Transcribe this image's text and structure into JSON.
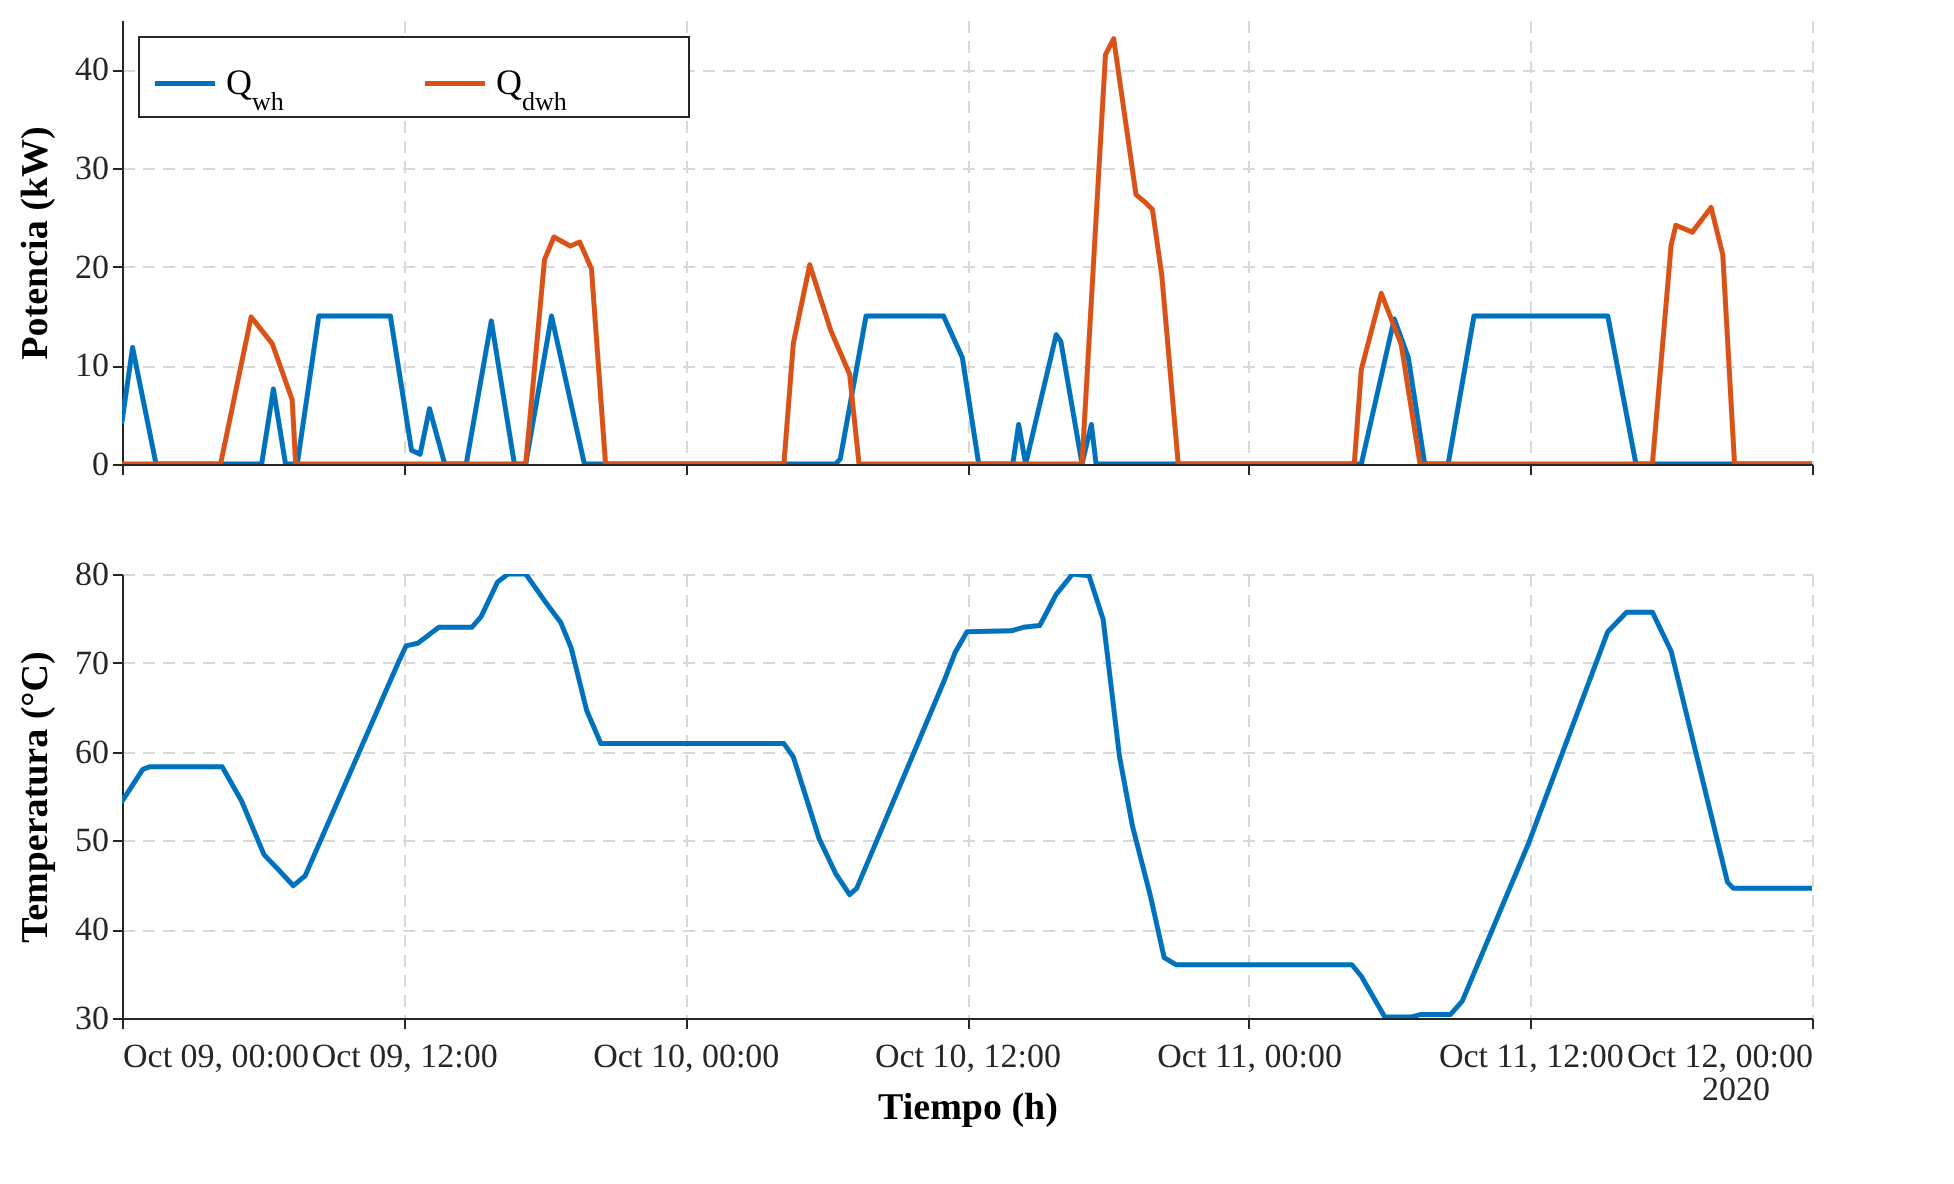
{
  "chart_data": [
    {
      "type": "line",
      "ylabel": "Potencia (kW)",
      "xlim": [
        "2020-10-09T00:00",
        "2020-10-12T00:00"
      ],
      "xticks": [
        {
          "value": "2020-10-09T00:00",
          "label": null
        },
        {
          "value": "2020-10-09T12:00",
          "label": null
        },
        {
          "value": "2020-10-10T00:00",
          "label": null
        },
        {
          "value": "2020-10-10T12:00",
          "label": null
        },
        {
          "value": "2020-10-11T00:00",
          "label": null
        },
        {
          "value": "2020-10-11T12:00",
          "label": null
        },
        {
          "value": "2020-10-12T00:00",
          "label": null
        }
      ],
      "ylim": [
        0,
        45
      ],
      "yticks": [
        0,
        10,
        20,
        30,
        40
      ],
      "grid": true,
      "legend": "top left",
      "tick_labels": "y",
      "series": [
        {
          "name": "Q$_{wh}$",
          "color": "#0072bd",
          "x": [
            "2020-10-09T00:00",
            "2020-10-09T00:27",
            "2020-10-09T01:27",
            "2020-10-09T05:57",
            "2020-10-09T06:27",
            "2020-10-09T06:58",
            "2020-10-09T07:28",
            "2020-10-09T08:23",
            "2020-10-09T11:26",
            "2020-10-09T12:20",
            "2020-10-09T12:42",
            "2020-10-09T13:06",
            "2020-10-09T13:45",
            "2020-10-09T14:40",
            "2020-10-09T15:44",
            "2020-10-09T16:43",
            "2020-10-09T17:12",
            "2020-10-09T18:18",
            "2020-10-09T19:42",
            "2020-10-10T04:18",
            "2020-10-10T06:24",
            "2020-10-10T06:36",
            "2020-10-10T07:42",
            "2020-10-10T11:00",
            "2020-10-10T11:48",
            "2020-10-10T12:30",
            "2020-10-10T13:57",
            "2020-10-10T14:12",
            "2020-10-10T14:30",
            "2020-10-10T15:48",
            "2020-10-10T16:00",
            "2020-10-10T16:54",
            "2020-10-10T17:18",
            "2020-10-10T17:30",
            "2020-10-11T04:48",
            "2020-10-11T06:12",
            "2020-10-11T06:48",
            "2020-10-11T07:30",
            "2020-10-11T08:30",
            "2020-10-11T09:36",
            "2020-10-11T15:18",
            "2020-10-11T16:30",
            "2020-10-12T00:00"
          ],
          "values": [
            4.3,
            11.8,
            0,
            0,
            7.6,
            0,
            0,
            15,
            15,
            1.4,
            1,
            5.6,
            0,
            0,
            14.5,
            0,
            0,
            15,
            0,
            0,
            0,
            0.5,
            15,
            15,
            10.8,
            0,
            0,
            4,
            0,
            13.1,
            12.4,
            0,
            4,
            0,
            0,
            14.7,
            10.8,
            0,
            0,
            15,
            15,
            0,
            0
          ]
        },
        {
          "name": "Q$_{dwh}$",
          "color": "#d95319",
          "x": [
            "2020-10-09T00:00",
            "2020-10-09T04:12",
            "2020-10-09T05:30",
            "2020-10-09T06:24",
            "2020-10-09T07:15",
            "2020-10-09T07:24",
            "2020-10-09T17:12",
            "2020-10-09T18:00",
            "2020-10-09T18:24",
            "2020-10-09T19:06",
            "2020-10-09T19:30",
            "2020-10-09T20:00",
            "2020-10-09T20:36",
            "2020-10-10T04:12",
            "2020-10-10T04:36",
            "2020-10-10T05:18",
            "2020-10-10T06:12",
            "2020-10-10T07:00",
            "2020-10-10T07:24",
            "2020-10-10T16:54",
            "2020-10-10T17:54",
            "2020-10-10T18:15",
            "2020-10-10T19:12",
            "2020-10-10T19:36",
            "2020-10-10T19:54",
            "2020-10-10T20:18",
            "2020-10-10T21:00",
            "2020-10-11T04:30",
            "2020-10-11T04:48",
            "2020-10-11T05:39",
            "2020-10-11T06:30",
            "2020-10-11T07:18",
            "2020-10-11T17:12",
            "2020-10-11T18:00",
            "2020-10-11T18:12",
            "2020-10-11T18:54",
            "2020-10-11T19:42",
            "2020-10-11T20:12",
            "2020-10-11T20:42",
            "2020-10-12T00:00"
          ],
          "values": [
            0,
            0,
            14.9,
            12.2,
            6.5,
            0,
            0,
            20.7,
            23,
            22.1,
            22.5,
            19.8,
            0,
            0,
            12.2,
            20.2,
            13.5,
            9.1,
            0,
            0,
            41.5,
            43.1,
            27.3,
            26.5,
            25.8,
            19.1,
            0,
            0,
            9.6,
            17.3,
            12.1,
            0,
            0,
            22.2,
            24.2,
            23.5,
            26,
            21.2,
            0,
            0
          ]
        }
      ]
    },
    {
      "type": "line",
      "xlabel": "Tiempo (h)",
      "ylabel": "Temperatura (°C)",
      "xlim": [
        "2020-10-09T00:00",
        "2020-10-12T00:00"
      ],
      "xticks": [
        {
          "value": "2020-10-09T00:00",
          "label": "Oct 09, 00:00"
        },
        {
          "value": "2020-10-09T12:00",
          "label": "Oct 09, 12:00"
        },
        {
          "value": "2020-10-10T00:00",
          "label": "Oct 10, 00:00"
        },
        {
          "value": "2020-10-10T12:00",
          "label": "Oct 10, 12:00"
        },
        {
          "value": "2020-10-11T00:00",
          "label": "Oct 11, 00:00"
        },
        {
          "value": "2020-10-11T12:00",
          "label": "Oct 11, 12:00"
        },
        {
          "value": "2020-10-12T00:00",
          "label": "Oct 12, 00:00"
        }
      ],
      "ylim": [
        30,
        80
      ],
      "yticks": [
        30,
        40,
        50,
        60,
        70,
        80
      ],
      "grid": true,
      "annotations": [
        "2020"
      ],
      "series": [
        {
          "color": "#0072bd",
          "x": [
            "2020-10-09T00:00",
            "2020-10-09T00:53",
            "2020-10-09T01:12",
            "2020-10-09T04:16",
            "2020-10-09T05:06",
            "2020-10-09T06:03",
            "2020-10-09T06:40",
            "2020-10-09T07:18",
            "2020-10-09T07:48",
            "2020-10-09T11:46",
            "2020-10-09T12:06",
            "2020-10-09T12:36",
            "2020-10-09T13:30",
            "2020-10-09T14:54",
            "2020-10-09T15:18",
            "2020-10-09T16:00",
            "2020-10-09T16:27",
            "2020-10-09T17:12",
            "2020-10-09T18:00",
            "2020-10-09T18:42",
            "2020-10-09T19:08",
            "2020-10-09T19:48",
            "2020-10-09T20:24",
            "2020-10-10T04:12",
            "2020-10-10T04:36",
            "2020-10-10T05:42",
            "2020-10-10T06:24",
            "2020-10-10T07:00",
            "2020-10-10T07:18",
            "2020-10-10T11:00",
            "2020-10-10T11:30",
            "2020-10-10T12:00",
            "2020-10-10T13:54",
            "2020-10-10T14:24",
            "2020-10-10T15:06",
            "2020-10-10T15:48",
            "2020-10-10T16:30",
            "2020-10-10T17:12",
            "2020-10-10T17:48",
            "2020-10-10T18:30",
            "2020-10-10T19:03",
            "2020-10-10T19:48",
            "2020-10-10T20:24",
            "2020-10-10T20:54",
            "2020-10-11T04:24",
            "2020-10-11T04:48",
            "2020-10-11T05:48",
            "2020-10-11T06:54",
            "2020-10-11T07:21",
            "2020-10-11T08:36",
            "2020-10-11T09:06",
            "2020-10-11T11:54",
            "2020-10-11T15:18",
            "2020-10-11T16:06",
            "2020-10-11T17:12",
            "2020-10-11T18:00",
            "2020-10-11T20:24",
            "2020-10-11T20:39",
            "2020-10-12T00:00"
          ],
          "values": [
            54.4,
            58,
            58.3,
            58.3,
            54.4,
            48.4,
            46.7,
            44.9,
            46,
            70,
            71.9,
            72.2,
            74,
            74,
            75.2,
            79.1,
            80,
            80,
            77,
            74.5,
            71.7,
            64.6,
            60.9,
            60.9,
            59.4,
            50.2,
            46.3,
            43.9,
            44.6,
            67.8,
            71.2,
            73.5,
            73.6,
            74,
            74.2,
            77.7,
            80,
            79.8,
            74.9,
            59.4,
            51.6,
            43.9,
            36.8,
            36,
            36,
            34.7,
            30.1,
            30.1,
            30.4,
            30.4,
            31.9,
            49.5,
            73.5,
            75.7,
            75.7,
            71.3,
            45.3,
            44.6,
            44.6
          ]
        }
      ]
    }
  ]
}
